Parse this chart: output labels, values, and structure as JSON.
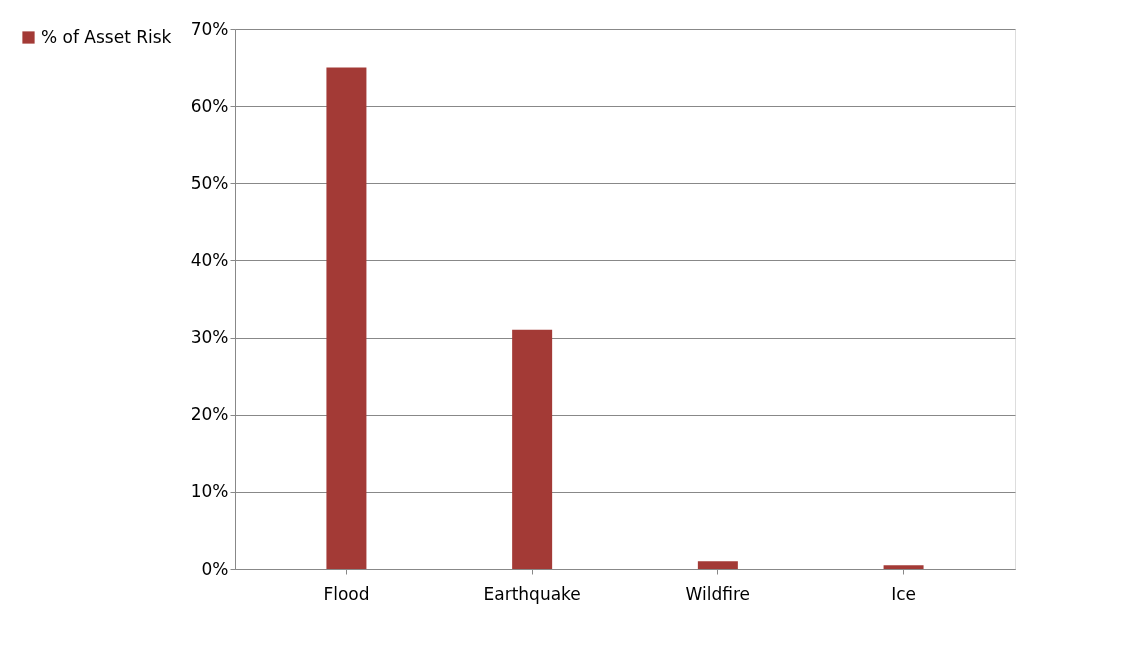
{
  "chart_data": {
    "type": "bar",
    "categories": [
      "Flood",
      "Earthquake",
      "Wildfire",
      "Ice"
    ],
    "series": [
      {
        "name": "% of Asset Risk",
        "color": "#a33a36",
        "values": [
          65,
          31,
          1,
          0.5
        ]
      }
    ],
    "ylim": [
      0,
      70
    ],
    "yticks": [
      {
        "value": 0,
        "label": "0%"
      },
      {
        "value": 10,
        "label": "10%"
      },
      {
        "value": 20,
        "label": "20%"
      },
      {
        "value": 30,
        "label": "30%"
      },
      {
        "value": 40,
        "label": "40%"
      },
      {
        "value": 50,
        "label": "50%"
      },
      {
        "value": 60,
        "label": "60%"
      },
      {
        "value": 70,
        "label": "70%"
      }
    ],
    "grid": "y",
    "legend": "left"
  }
}
